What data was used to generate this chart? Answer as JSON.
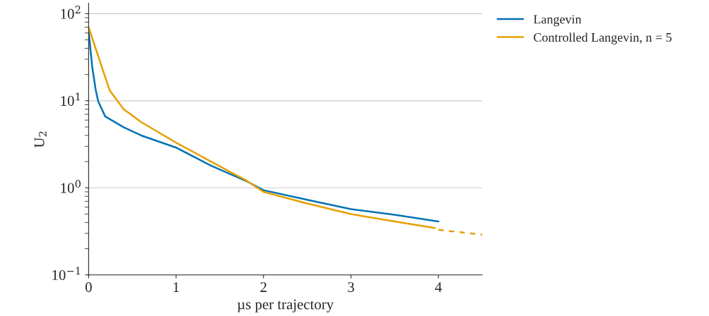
{
  "chart_data": {
    "type": "line",
    "xlabel": "µs per trajectory",
    "ylabel": "U$_{2}$",
    "log": "y",
    "grid": "y",
    "legend": "top right",
    "xlim": [
      0,
      4.5
    ],
    "xticks": [
      0,
      1,
      2,
      3,
      4
    ],
    "ylim": [
      0.1,
      132
    ],
    "yticks": [
      {
        "value": 0.1,
        "label": "10$^{−1}$"
      },
      {
        "value": 1,
        "label": "10$^{0}$"
      },
      {
        "value": 10,
        "label": "10$^{1}$"
      },
      {
        "value": 100,
        "label": "10$^{2}$"
      }
    ],
    "series": [
      {
        "name": "Langevin",
        "color": "#0072b2",
        "line_style": "solid",
        "x": [
          0,
          0.04,
          0.08,
          0.11,
          0.19,
          0.4,
          0.6,
          1.0,
          1.4,
          1.8,
          2.0,
          2.5,
          3.0,
          3.5,
          4.0
        ],
        "values": [
          63,
          25,
          13.5,
          9.8,
          6.6,
          4.96,
          4.0,
          2.9,
          1.8,
          1.2,
          0.94,
          0.73,
          0.57,
          0.49,
          0.41
        ]
      },
      {
        "name": "Controlled Langevin, n = 5",
        "color": "#e69f00",
        "line_style": "solid",
        "x": [
          0,
          0.08,
          0.24,
          0.4,
          0.6,
          1.0,
          1.4,
          1.8,
          2.0,
          2.5,
          3.0,
          3.5,
          3.96
        ],
        "values": [
          70,
          40,
          13.2,
          8.0,
          5.7,
          3.3,
          2.0,
          1.22,
          0.9,
          0.66,
          0.5,
          0.41,
          0.345
        ]
      },
      {
        "color": "#e69f00",
        "line_style": "dashed",
        "x": [
          4.0,
          4.5
        ],
        "values": [
          0.33,
          0.29
        ]
      }
    ]
  }
}
